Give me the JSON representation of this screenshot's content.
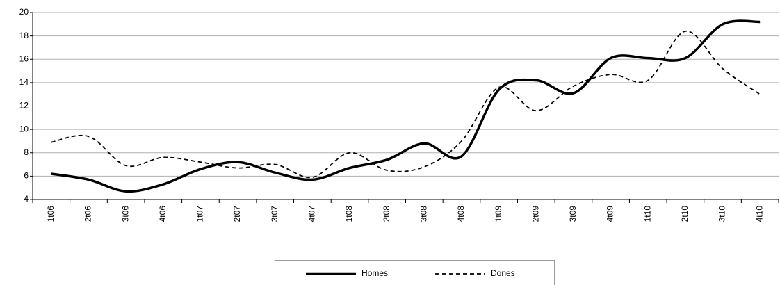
{
  "chart_data": {
    "type": "line",
    "categories": [
      "1t06",
      "2t06",
      "3t06",
      "4t06",
      "1t07",
      "2t07",
      "3t07",
      "4t07",
      "1t08",
      "2t08",
      "3t08",
      "4t08",
      "1t09",
      "2t09",
      "3t09",
      "4t09",
      "1t10",
      "2t10",
      "3t10",
      "4t10"
    ],
    "series": [
      {
        "name": "Homes",
        "color": "#000000",
        "values": [
          6.2,
          5.7,
          4.7,
          5.3,
          6.6,
          7.2,
          6.3,
          5.7,
          6.7,
          7.4,
          8.8,
          7.7,
          13.4,
          14.2,
          13.1,
          16.1,
          16.1,
          16.1,
          19.0,
          19.2
        ]
      },
      {
        "name": "Dones",
        "color": "#000000",
        "values": [
          8.9,
          9.4,
          6.9,
          7.6,
          7.2,
          6.7,
          7.0,
          5.9,
          8.0,
          6.5,
          6.8,
          9.0,
          13.6,
          11.6,
          13.7,
          14.7,
          14.2,
          18.4,
          15.2,
          13.0
        ]
      }
    ],
    "ylim": [
      4,
      20
    ],
    "yticks": [
      4,
      6,
      8,
      10,
      12,
      14,
      16,
      18,
      20
    ],
    "grid": true,
    "legend": "bottom"
  }
}
